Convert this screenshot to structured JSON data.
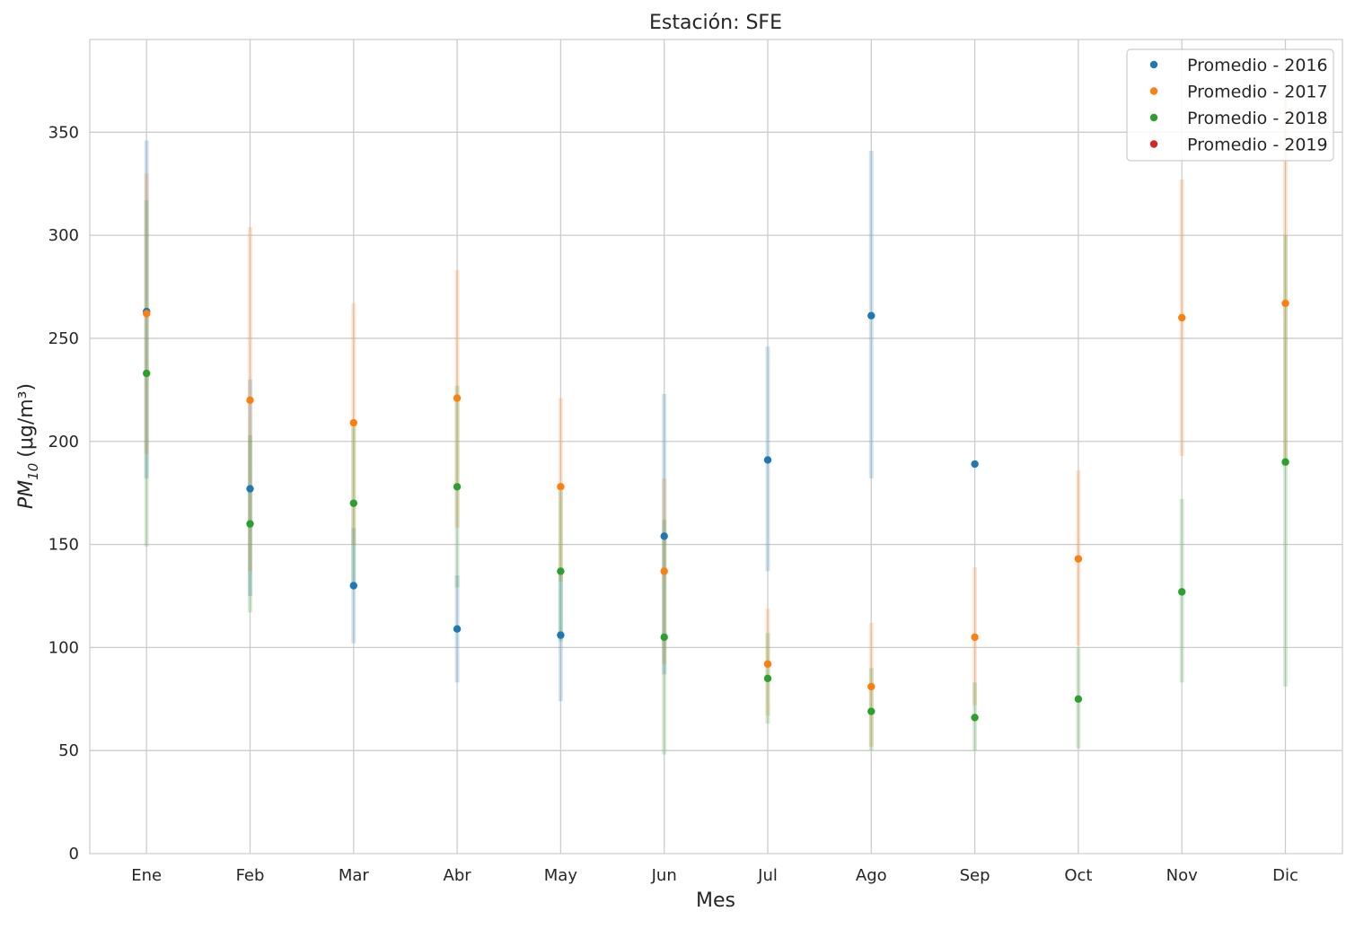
{
  "chart_data": {
    "type": "scatter",
    "title": "Estación: SFE",
    "xlabel": "Mes",
    "ylabel_main": "PM",
    "ylabel_sub": "10",
    "ylabel_unit": "(μg/m³)",
    "ylim": [
      0,
      395
    ],
    "yticks": [
      0,
      50,
      100,
      150,
      200,
      250,
      300,
      350
    ],
    "categories": [
      "Ene",
      "Feb",
      "Mar",
      "Abr",
      "May",
      "Jun",
      "Jul",
      "Ago",
      "Sep",
      "Oct",
      "Nov",
      "Dic"
    ],
    "grid": true,
    "legend_position": "top-right",
    "series": [
      {
        "name": "Promedio - 2016",
        "color": "#1f77b4",
        "values": [
          263,
          177,
          130,
          109,
          106,
          154,
          191,
          261,
          189,
          null,
          null,
          null
        ],
        "low": [
          182,
          125,
          102,
          83,
          74,
          87,
          137,
          182,
          null,
          null,
          null,
          null
        ],
        "high": [
          346,
          230,
          158,
          135,
          137,
          223,
          246,
          341,
          null,
          null,
          null,
          null
        ]
      },
      {
        "name": "Promedio - 2017",
        "color": "#ff7f0e",
        "values": [
          262,
          220,
          209,
          221,
          178,
          137,
          92,
          81,
          105,
          143,
          260,
          267
        ],
        "low": [
          194,
          137,
          150,
          158,
          132,
          92,
          67,
          52,
          72,
          101,
          193,
          190
        ],
        "high": [
          330,
          304,
          267,
          283,
          221,
          182,
          119,
          112,
          139,
          186,
          327,
          370
        ]
      },
      {
        "name": "Promedio - 2018",
        "color": "#2ca02c",
        "values": [
          233,
          160,
          170,
          178,
          137,
          105,
          85,
          69,
          66,
          75,
          127,
          190
        ],
        "low": [
          149,
          117,
          130,
          129,
          103,
          48,
          63,
          50,
          50,
          51,
          83,
          81
        ],
        "high": [
          317,
          203,
          207,
          227,
          176,
          162,
          107,
          90,
          83,
          100,
          172,
          300
        ]
      },
      {
        "name": "Promedio - 2019",
        "color": "#d62728",
        "values": [
          null,
          null,
          null,
          null,
          null,
          null,
          null,
          null,
          null,
          null,
          null,
          null
        ],
        "low": [],
        "high": []
      }
    ]
  }
}
